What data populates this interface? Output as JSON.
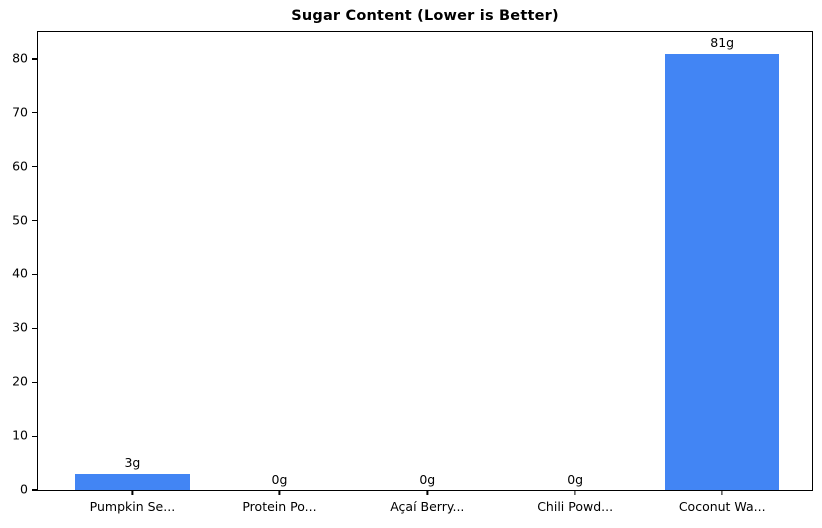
{
  "chart_data": {
    "type": "bar",
    "title": "Sugar Content (Lower is Better)",
    "categories": [
      "Pumpkin Se...",
      "Protein Po...",
      "Açaí Berry...",
      "Chili Powd...",
      "Coconut Wa..."
    ],
    "values": [
      3,
      0,
      0,
      0,
      81
    ],
    "bar_labels": [
      "3g",
      "0g",
      "0g",
      "0g",
      "81g"
    ],
    "xlabel": "",
    "ylabel": "",
    "ylim": [
      0,
      85
    ],
    "yticks": [
      0,
      10,
      20,
      30,
      40,
      50,
      60,
      70,
      80
    ],
    "grid": false,
    "legend": null,
    "colors": {
      "bar_fill": "#4285F4",
      "text": "#000000",
      "spine": "#000000",
      "background": "#ffffff"
    }
  }
}
